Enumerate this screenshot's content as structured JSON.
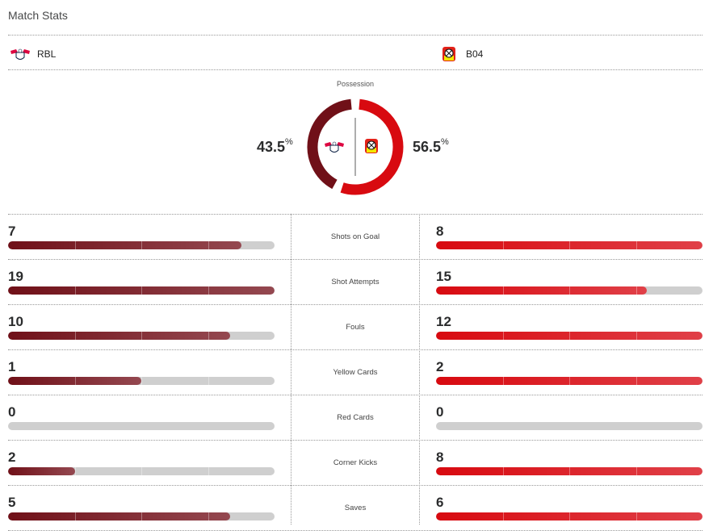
{
  "title": "Match Stats",
  "home": {
    "abbr": "RBL",
    "possession": "43.5",
    "color": "#701018"
  },
  "away": {
    "abbr": "B04",
    "possession": "56.5",
    "color": "#d80a10"
  },
  "possession_label": "Possession",
  "pct_sign": "%",
  "stats": [
    {
      "label": "Shots on Goal",
      "home": 7,
      "away": 8
    },
    {
      "label": "Shot Attempts",
      "home": 19,
      "away": 15
    },
    {
      "label": "Fouls",
      "home": 10,
      "away": 12
    },
    {
      "label": "Yellow Cards",
      "home": 1,
      "away": 2
    },
    {
      "label": "Red Cards",
      "home": 0,
      "away": 0
    },
    {
      "label": "Corner Kicks",
      "home": 2,
      "away": 8
    },
    {
      "label": "Saves",
      "home": 5,
      "away": 6
    }
  ]
}
